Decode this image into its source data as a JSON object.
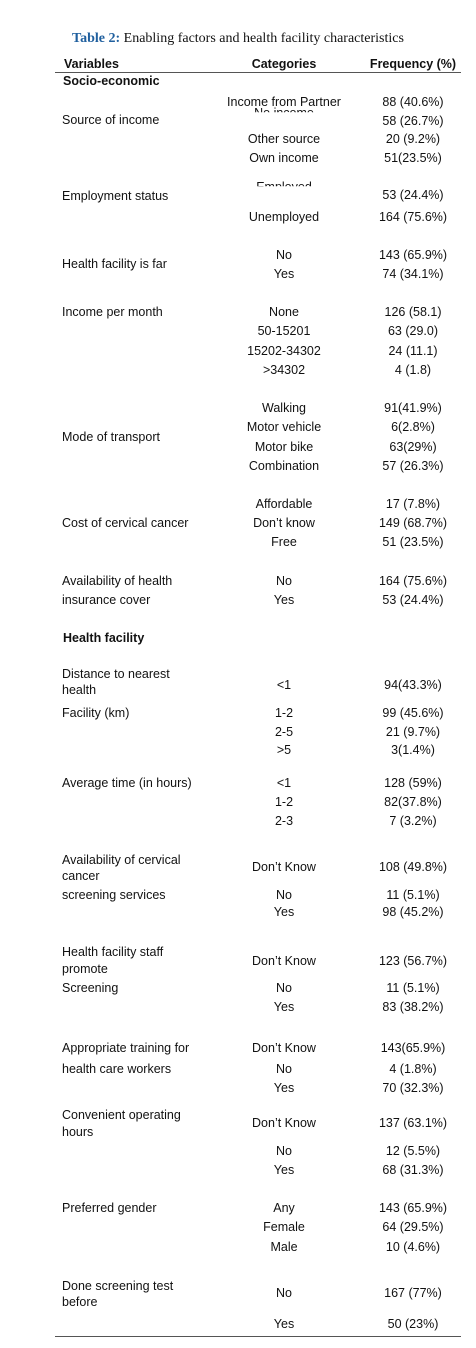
{
  "title": {
    "label": "Table 2:",
    "text": "Enabling factors and health facility characteristics"
  },
  "header": [
    "Variables",
    "Categories",
    "Frequency (%)"
  ],
  "sections": [
    {
      "heading": "Socio-economic",
      "groups": [
        {
          "variable": [
            "Source of income"
          ],
          "items": [
            {
              "category": "Income from Partner",
              "frequency": "88 (40.6%)"
            },
            {
              "category": "No income",
              "frequency": "58 (26.7%)"
            },
            {
              "category": "Other source",
              "frequency": "20 (9.2%)"
            },
            {
              "category": "Own income",
              "frequency": "51(23.5%)"
            }
          ]
        },
        {
          "variable": [
            "Employment status"
          ],
          "items": [
            {
              "category": "Employed",
              "frequency": "53 (24.4%)"
            },
            {
              "category": "Unemployed",
              "frequency": "164 (75.6%)"
            }
          ]
        },
        {
          "variable": [
            "Health facility is far"
          ],
          "items": [
            {
              "category": "No",
              "frequency": "143 (65.9%)"
            },
            {
              "category": "Yes",
              "frequency": "74 (34.1%)"
            }
          ]
        },
        {
          "variable": [
            "Income per month"
          ],
          "items": [
            {
              "category": "None",
              "frequency": "126 (58.1)"
            },
            {
              "category": "50-15201",
              "frequency": "63 (29.0)"
            },
            {
              "category": "15202-34302",
              "frequency": "24 (11.1)"
            },
            {
              "category": ">34302",
              "frequency": "4 (1.8)"
            }
          ]
        },
        {
          "variable": [
            "Mode of transport"
          ],
          "items": [
            {
              "category": "Walking",
              "frequency": "91(41.9%)"
            },
            {
              "category": "Motor vehicle",
              "frequency": "6(2.8%)"
            },
            {
              "category": "Motor bike",
              "frequency": "63(29%)"
            },
            {
              "category": "Combination",
              "frequency": "57 (26.3%)"
            }
          ]
        },
        {
          "variable": [
            "Cost of cervical cancer"
          ],
          "items": [
            {
              "category": "Affordable",
              "frequency": "17 (7.8%)"
            },
            {
              "category": "Don’t know",
              "frequency": "149 (68.7%)"
            },
            {
              "category": "Free",
              "frequency": "51 (23.5%)"
            }
          ]
        },
        {
          "variable": [
            "Availability of health",
            "insurance cover"
          ],
          "items": [
            {
              "category": "No",
              "frequency": "164 (75.6%)"
            },
            {
              "category": "Yes",
              "frequency": "53 (24.4%)"
            }
          ]
        }
      ]
    },
    {
      "heading": "Health facility",
      "groups": [
        {
          "variable": [
            "Distance to nearest",
            "health",
            "Facility (km)"
          ],
          "items": [
            {
              "category": "<1",
              "frequency": "94(43.3%)"
            },
            {
              "category": "1-2",
              "frequency": "99 (45.6%)"
            },
            {
              "category": "2-5",
              "frequency": "21 (9.7%)"
            },
            {
              "category": ">5",
              "frequency": "3(1.4%)"
            }
          ]
        },
        {
          "variable": [
            "Average time (in hours)"
          ],
          "items": [
            {
              "category": "<1",
              "frequency": "128 (59%)"
            },
            {
              "category": "1-2",
              "frequency": "82(37.8%)"
            },
            {
              "category": "2-3",
              "frequency": "7 (3.2%)"
            }
          ]
        },
        {
          "variable": [
            "Availability of cervical",
            "cancer",
            "screening services"
          ],
          "items": [
            {
              "category": "Don’t Know",
              "frequency": "108 (49.8%)"
            },
            {
              "category": "No",
              "frequency": "11 (5.1%)"
            },
            {
              "category": "Yes",
              "frequency": "98 (45.2%)"
            }
          ]
        },
        {
          "variable": [
            "Health facility staff",
            "promote",
            "Screening"
          ],
          "items": [
            {
              "category": "Don’t Know",
              "frequency": "123 (56.7%)"
            },
            {
              "category": "No",
              "frequency": "11 (5.1%)"
            },
            {
              "category": "Yes",
              "frequency": "83 (38.2%)"
            }
          ]
        },
        {
          "variable": [
            "Appropriate training for",
            "health care workers"
          ],
          "items": [
            {
              "category": "Don’t Know",
              "frequency": "143(65.9%)"
            },
            {
              "category": "No",
              "frequency": "4 (1.8%)"
            },
            {
              "category": "Yes",
              "frequency": "70 (32.3%)"
            }
          ]
        },
        {
          "variable": [
            "Convenient operating",
            "hours"
          ],
          "items": [
            {
              "category": "Don’t Know",
              "frequency": "137 (63.1%)"
            },
            {
              "category": "No",
              "frequency": "12 (5.5%)"
            },
            {
              "category": "Yes",
              "frequency": "68 (31.3%)"
            }
          ]
        },
        {
          "variable": [
            "Preferred gender"
          ],
          "items": [
            {
              "category": "Any",
              "frequency": "143 (65.9%)"
            },
            {
              "category": "Female",
              "frequency": "64 (29.5%)"
            },
            {
              "category": "Male",
              "frequency": "10 (4.6%)"
            }
          ]
        },
        {
          "variable": [
            "Done screening test",
            "before"
          ],
          "items": [
            {
              "category": "No",
              "frequency": "167 (77%)"
            },
            {
              "category": "Yes",
              "frequency": "50 (23%)"
            }
          ]
        }
      ]
    }
  ]
}
